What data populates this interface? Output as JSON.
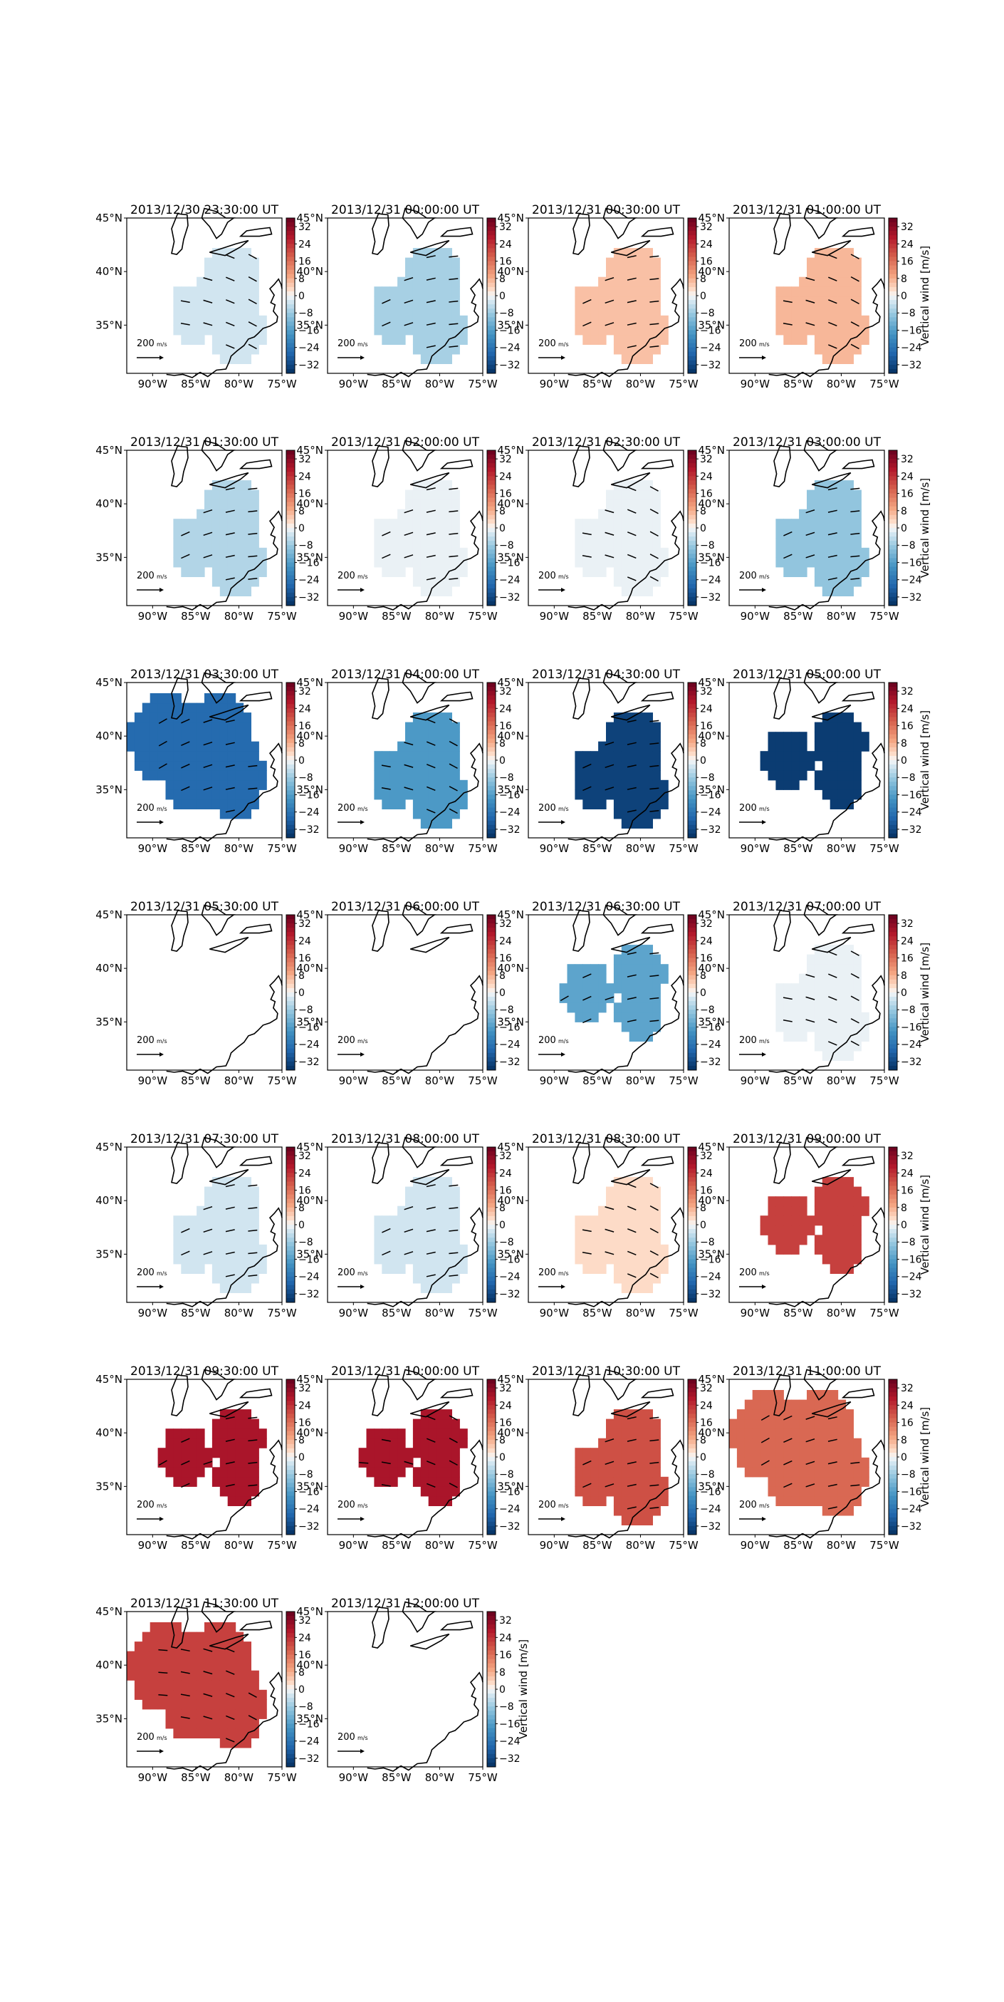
{
  "figure": {
    "colorbar": {
      "ticks": [
        32,
        24,
        16,
        8,
        0,
        -8,
        -16,
        -24,
        -32
      ],
      "tick_labels": [
        "32",
        "24",
        "16",
        "8",
        "0",
        "−8",
        "−16",
        "−24",
        "−32"
      ],
      "label": "Vertical wind [m/s]",
      "range": [
        -36,
        36
      ],
      "colormap": "RdBu_r"
    },
    "map": {
      "lat_ticks": [
        "45°N",
        "40°N",
        "35°N"
      ],
      "lon_ticks": [
        "90°W",
        "85°W",
        "80°W",
        "75°W"
      ],
      "extent": {
        "lon": [
          -93,
          -75
        ],
        "lat": [
          30.5,
          45
        ]
      }
    },
    "quiver_key": {
      "label": "200",
      "unit": "m/s"
    }
  },
  "chart_data": [
    {
      "type": "heatmap",
      "title": "2013/12/30 23:30:00 UT",
      "vertical_wind": -3,
      "region": "medium",
      "vectors": true
    },
    {
      "type": "heatmap",
      "title": "2013/12/31 00:00:00 UT",
      "vertical_wind": -7,
      "region": "medium",
      "vectors": true
    },
    {
      "type": "heatmap",
      "title": "2013/12/31 00:30:00 UT",
      "vertical_wind": 6,
      "region": "medium",
      "vectors": true
    },
    {
      "type": "heatmap",
      "title": "2013/12/31 01:00:00 UT",
      "vertical_wind": 7,
      "region": "medium",
      "vectors": true
    },
    {
      "type": "heatmap",
      "title": "2013/12/31 01:30:00 UT",
      "vertical_wind": -6,
      "region": "medium",
      "vectors": true
    },
    {
      "type": "heatmap",
      "title": "2013/12/31 02:00:00 UT",
      "vertical_wind": -1,
      "region": "medium",
      "vectors": true
    },
    {
      "type": "heatmap",
      "title": "2013/12/31 02:30:00 UT",
      "vertical_wind": -1,
      "region": "medium",
      "vectors": true
    },
    {
      "type": "heatmap",
      "title": "2013/12/31 03:00:00 UT",
      "vertical_wind": -9,
      "region": "medium",
      "vectors": true
    },
    {
      "type": "heatmap",
      "title": "2013/12/31 03:30:00 UT",
      "vertical_wind": -26,
      "region": "large",
      "vectors": true
    },
    {
      "type": "heatmap",
      "title": "2013/12/31 04:00:00 UT",
      "vertical_wind": -17,
      "region": "medium",
      "vectors": true
    },
    {
      "type": "heatmap",
      "title": "2013/12/31 04:30:00 UT",
      "vertical_wind": -33,
      "region": "medium",
      "vectors": true
    },
    {
      "type": "heatmap",
      "title": "2013/12/31 05:00:00 UT",
      "vertical_wind": -34,
      "region": "compact",
      "vectors": false
    },
    {
      "type": "heatmap",
      "title": "2013/12/31 05:30:00 UT",
      "vertical_wind": null,
      "region": "none",
      "vectors": false
    },
    {
      "type": "heatmap",
      "title": "2013/12/31 06:00:00 UT",
      "vertical_wind": null,
      "region": "none",
      "vectors": false
    },
    {
      "type": "heatmap",
      "title": "2013/12/31 06:30:00 UT",
      "vertical_wind": -15,
      "region": "compact",
      "vectors": true
    },
    {
      "type": "heatmap",
      "title": "2013/12/31 07:00:00 UT",
      "vertical_wind": -1,
      "region": "medium",
      "vectors": true
    },
    {
      "type": "heatmap",
      "title": "2013/12/31 07:30:00 UT",
      "vertical_wind": -3,
      "region": "medium",
      "vectors": true
    },
    {
      "type": "heatmap",
      "title": "2013/12/31 08:00:00 UT",
      "vertical_wind": -3,
      "region": "medium",
      "vectors": true
    },
    {
      "type": "heatmap",
      "title": "2013/12/31 08:30:00 UT",
      "vertical_wind": 3,
      "region": "medium",
      "vectors": true
    },
    {
      "type": "heatmap",
      "title": "2013/12/31 09:00:00 UT",
      "vertical_wind": 22,
      "region": "compact",
      "vectors": false
    },
    {
      "type": "heatmap",
      "title": "2013/12/31 09:30:00 UT",
      "vertical_wind": 28,
      "region": "compact",
      "vectors": true
    },
    {
      "type": "heatmap",
      "title": "2013/12/31 10:00:00 UT",
      "vertical_wind": 28,
      "region": "compact",
      "vectors": true
    },
    {
      "type": "heatmap",
      "title": "2013/12/31 10:30:00 UT",
      "vertical_wind": 20,
      "region": "medium",
      "vectors": true
    },
    {
      "type": "heatmap",
      "title": "2013/12/31 11:00:00 UT",
      "vertical_wind": 17,
      "region": "large",
      "vectors": true
    },
    {
      "type": "heatmap",
      "title": "2013/12/31 11:30:00 UT",
      "vertical_wind": 22,
      "region": "large",
      "vectors": true
    },
    {
      "type": "heatmap",
      "title": "2013/12/31 12:00:00 UT",
      "vertical_wind": null,
      "region": "none",
      "vectors": false
    }
  ]
}
